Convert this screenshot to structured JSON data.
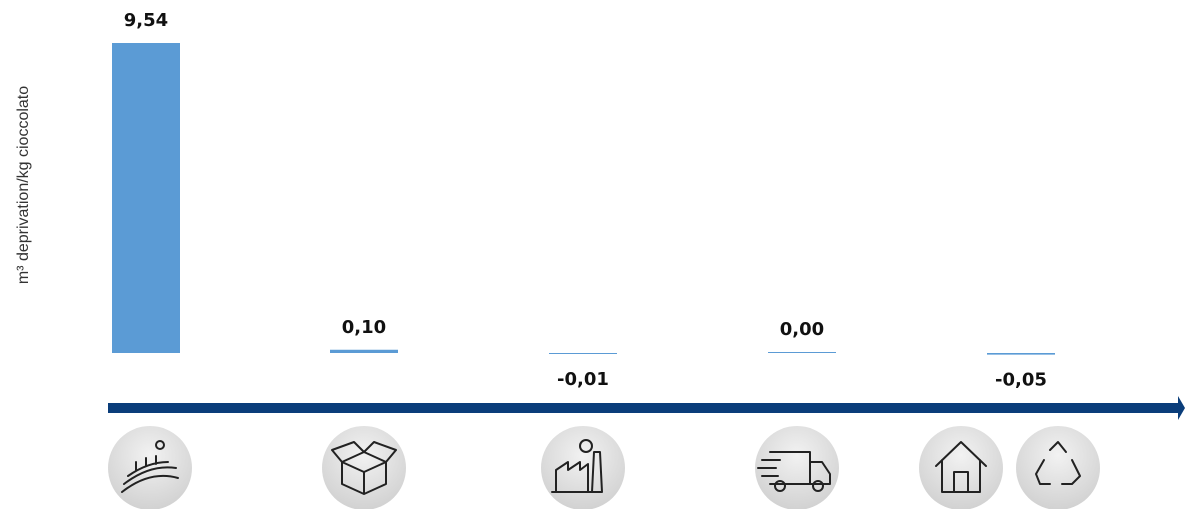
{
  "chart_data": {
    "type": "bar",
    "y_label": "m³ deprivation/kg cioccolato",
    "categories": [
      null,
      null,
      null,
      null,
      null
    ],
    "values": [
      9.54,
      0.1,
      -0.01,
      0.0,
      -0.05
    ],
    "value_labels": [
      "9,54",
      "0,10",
      "-0,01",
      "0,00",
      "-0,05"
    ],
    "color": "#5b9bd5"
  }
}
